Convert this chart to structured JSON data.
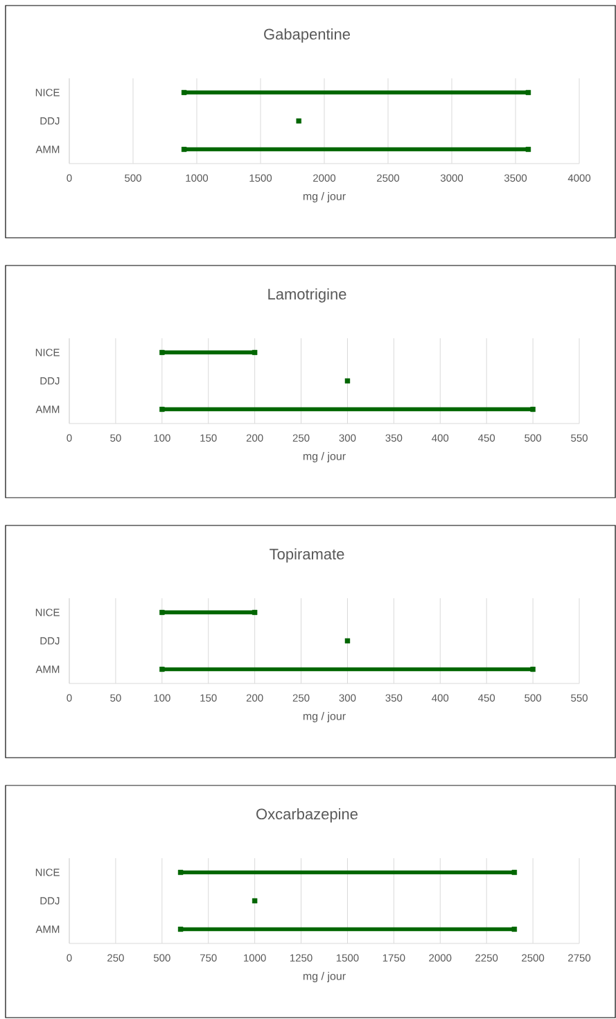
{
  "chart_data": [
    {
      "type": "bar",
      "orientation": "horizontal",
      "title": "Gabapentine",
      "xlabel": "mg / jour",
      "categories": [
        "NICE",
        "DDJ",
        "AMM"
      ],
      "marker": "square",
      "grid": "x",
      "xlim": [
        0,
        4000
      ],
      "xticks": [
        0,
        500,
        1000,
        1500,
        2000,
        2500,
        3000,
        3500,
        4000
      ],
      "series": [
        {
          "type": "bar",
          "color": "#006600",
          "base": [
            900,
            null,
            900
          ],
          "values": [
            2700,
            null,
            2700
          ]
        },
        {
          "type": "scatter",
          "color": "#006600",
          "values": [
            900,
            1800,
            900
          ]
        },
        {
          "type": "scatter",
          "color": "#006600",
          "values": [
            3600,
            null,
            3600
          ]
        }
      ]
    },
    {
      "type": "bar",
      "orientation": "horizontal",
      "title": "Lamotrigine",
      "xlabel": "mg / jour",
      "categories": [
        "NICE",
        "DDJ",
        "AMM"
      ],
      "marker": "square",
      "grid": "x",
      "xlim": [
        0,
        550
      ],
      "xticks": [
        0,
        50,
        100,
        150,
        200,
        250,
        300,
        350,
        400,
        450,
        500,
        550
      ],
      "series": [
        {
          "type": "bar",
          "color": "#006600",
          "base": [
            100,
            null,
            100
          ],
          "values": [
            100,
            null,
            400
          ]
        },
        {
          "type": "scatter",
          "color": "#006600",
          "values": [
            100,
            300,
            100
          ]
        },
        {
          "type": "scatter",
          "color": "#006600",
          "values": [
            200,
            null,
            500
          ]
        }
      ]
    },
    {
      "type": "bar",
      "orientation": "horizontal",
      "title": "Topiramate",
      "xlabel": "mg / jour",
      "categories": [
        "NICE",
        "DDJ",
        "AMM"
      ],
      "marker": "square",
      "grid": "x",
      "xlim": [
        0,
        550
      ],
      "xticks": [
        0,
        50,
        100,
        150,
        200,
        250,
        300,
        350,
        400,
        450,
        500,
        550
      ],
      "series": [
        {
          "type": "bar",
          "color": "#006600",
          "base": [
            100,
            null,
            100
          ],
          "values": [
            100,
            null,
            400
          ]
        },
        {
          "type": "scatter",
          "color": "#006600",
          "values": [
            100,
            300,
            100
          ]
        },
        {
          "type": "scatter",
          "color": "#006600",
          "values": [
            200,
            null,
            500
          ]
        }
      ]
    },
    {
      "type": "bar",
      "orientation": "horizontal",
      "title": "Oxcarbazepine",
      "xlabel": "mg / jour",
      "categories": [
        "NICE",
        "DDJ",
        "AMM"
      ],
      "marker": "square",
      "grid": "x",
      "xlim": [
        0,
        2750
      ],
      "xticks": [
        0,
        250,
        500,
        750,
        1000,
        1250,
        1500,
        1750,
        2000,
        2250,
        2500,
        2750
      ],
      "series": [
        {
          "type": "bar",
          "color": "#006600",
          "base": [
            600,
            null,
            600
          ],
          "values": [
            1800,
            null,
            1800
          ]
        },
        {
          "type": "scatter",
          "color": "#006600",
          "values": [
            600,
            1000,
            600
          ]
        },
        {
          "type": "scatter",
          "color": "#006600",
          "values": [
            2400,
            null,
            2400
          ]
        }
      ]
    }
  ]
}
